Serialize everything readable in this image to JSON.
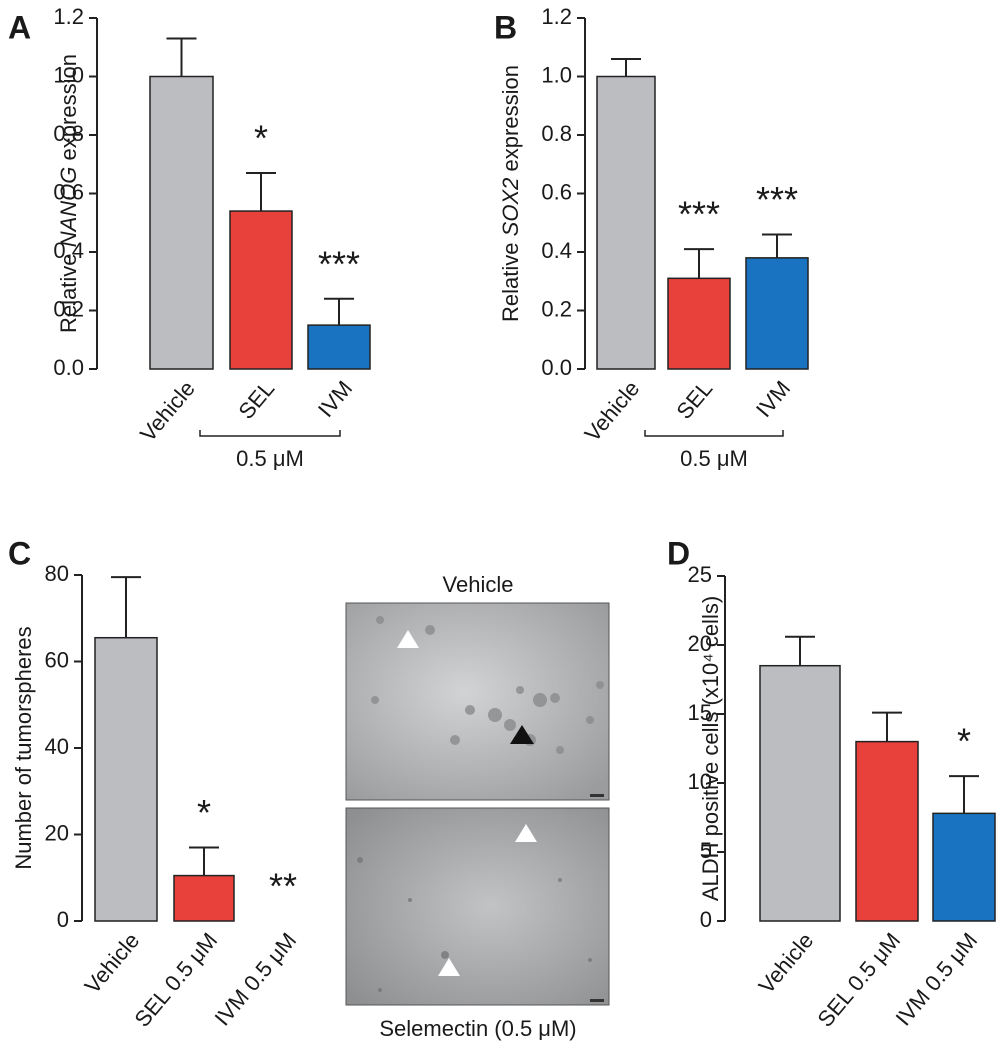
{
  "chart_data": [
    {
      "type": "bar",
      "panel": "A",
      "ylabel_parts": [
        "Relative",
        "NANOG",
        "expression"
      ],
      "categories": [
        "Vehicle",
        "SEL",
        "IVM"
      ],
      "group_label": "0.5 μM",
      "values": [
        1.0,
        0.54,
        0.15
      ],
      "errors": [
        0.13,
        0.13,
        0.09
      ],
      "annotations": [
        null,
        "*",
        "***"
      ],
      "colors": [
        "#bcbdc1",
        "#e8403a",
        "#1a73c0"
      ],
      "ylim": [
        0,
        1.2
      ],
      "yticks": [
        {
          "value": 0,
          "label": "0.0"
        },
        0.2,
        0.4,
        0.6,
        0.8,
        {
          "value": 1,
          "label": "1.0"
        },
        1.2
      ]
    },
    {
      "type": "bar",
      "panel": "B",
      "ylabel_parts": [
        "Relative",
        "SOX2",
        "expression"
      ],
      "categories": [
        "Vehicle",
        "SEL",
        "IVM"
      ],
      "group_label": "0.5 μM",
      "values": [
        1.0,
        0.31,
        0.38
      ],
      "errors": [
        0.06,
        0.1,
        0.08
      ],
      "annotations": [
        null,
        "***",
        "***"
      ],
      "colors": [
        "#bcbdc1",
        "#e8403a",
        "#1a73c0"
      ],
      "ylim": [
        0,
        1.2
      ],
      "yticks": [
        {
          "value": 0,
          "label": "0.0"
        },
        0.2,
        0.4,
        0.6,
        0.8,
        {
          "value": 1,
          "label": "1.0"
        },
        1.2
      ]
    },
    {
      "type": "bar",
      "panel": "C",
      "ylabel_parts": [
        "Number of tumorspheres"
      ],
      "categories": [
        "Vehicle",
        "SEL 0.5 μM",
        "IVM 0.5 μM"
      ],
      "values": [
        65.5,
        10.5,
        0
      ],
      "errors": [
        14,
        6.5,
        null
      ],
      "annotations": [
        null,
        "*",
        "**"
      ],
      "colors": [
        "#bcbdc1",
        "#e8403a",
        "#1a73c0"
      ],
      "ylim": [
        0,
        80
      ],
      "yticks": [
        0,
        20,
        40,
        60,
        80
      ],
      "micrographs": [
        "Vehicle",
        "Selemectin (0.5 μM)"
      ]
    },
    {
      "type": "bar",
      "panel": "D",
      "ylabel_parts": [
        "ALDH positive cells (x10⁴ cells)"
      ],
      "categories": [
        "Vehicle",
        "SEL 0.5 μM",
        "IVM 0.5 μM"
      ],
      "values": [
        18.5,
        13,
        7.8
      ],
      "errors": [
        2.1,
        2.1,
        2.7
      ],
      "annotations": [
        null,
        null,
        "*"
      ],
      "colors": [
        "#bcbdc1",
        "#e8403a",
        "#1a73c0"
      ],
      "ylim": [
        0,
        25
      ],
      "yticks": [
        0,
        5,
        10,
        15,
        20,
        25
      ]
    }
  ]
}
